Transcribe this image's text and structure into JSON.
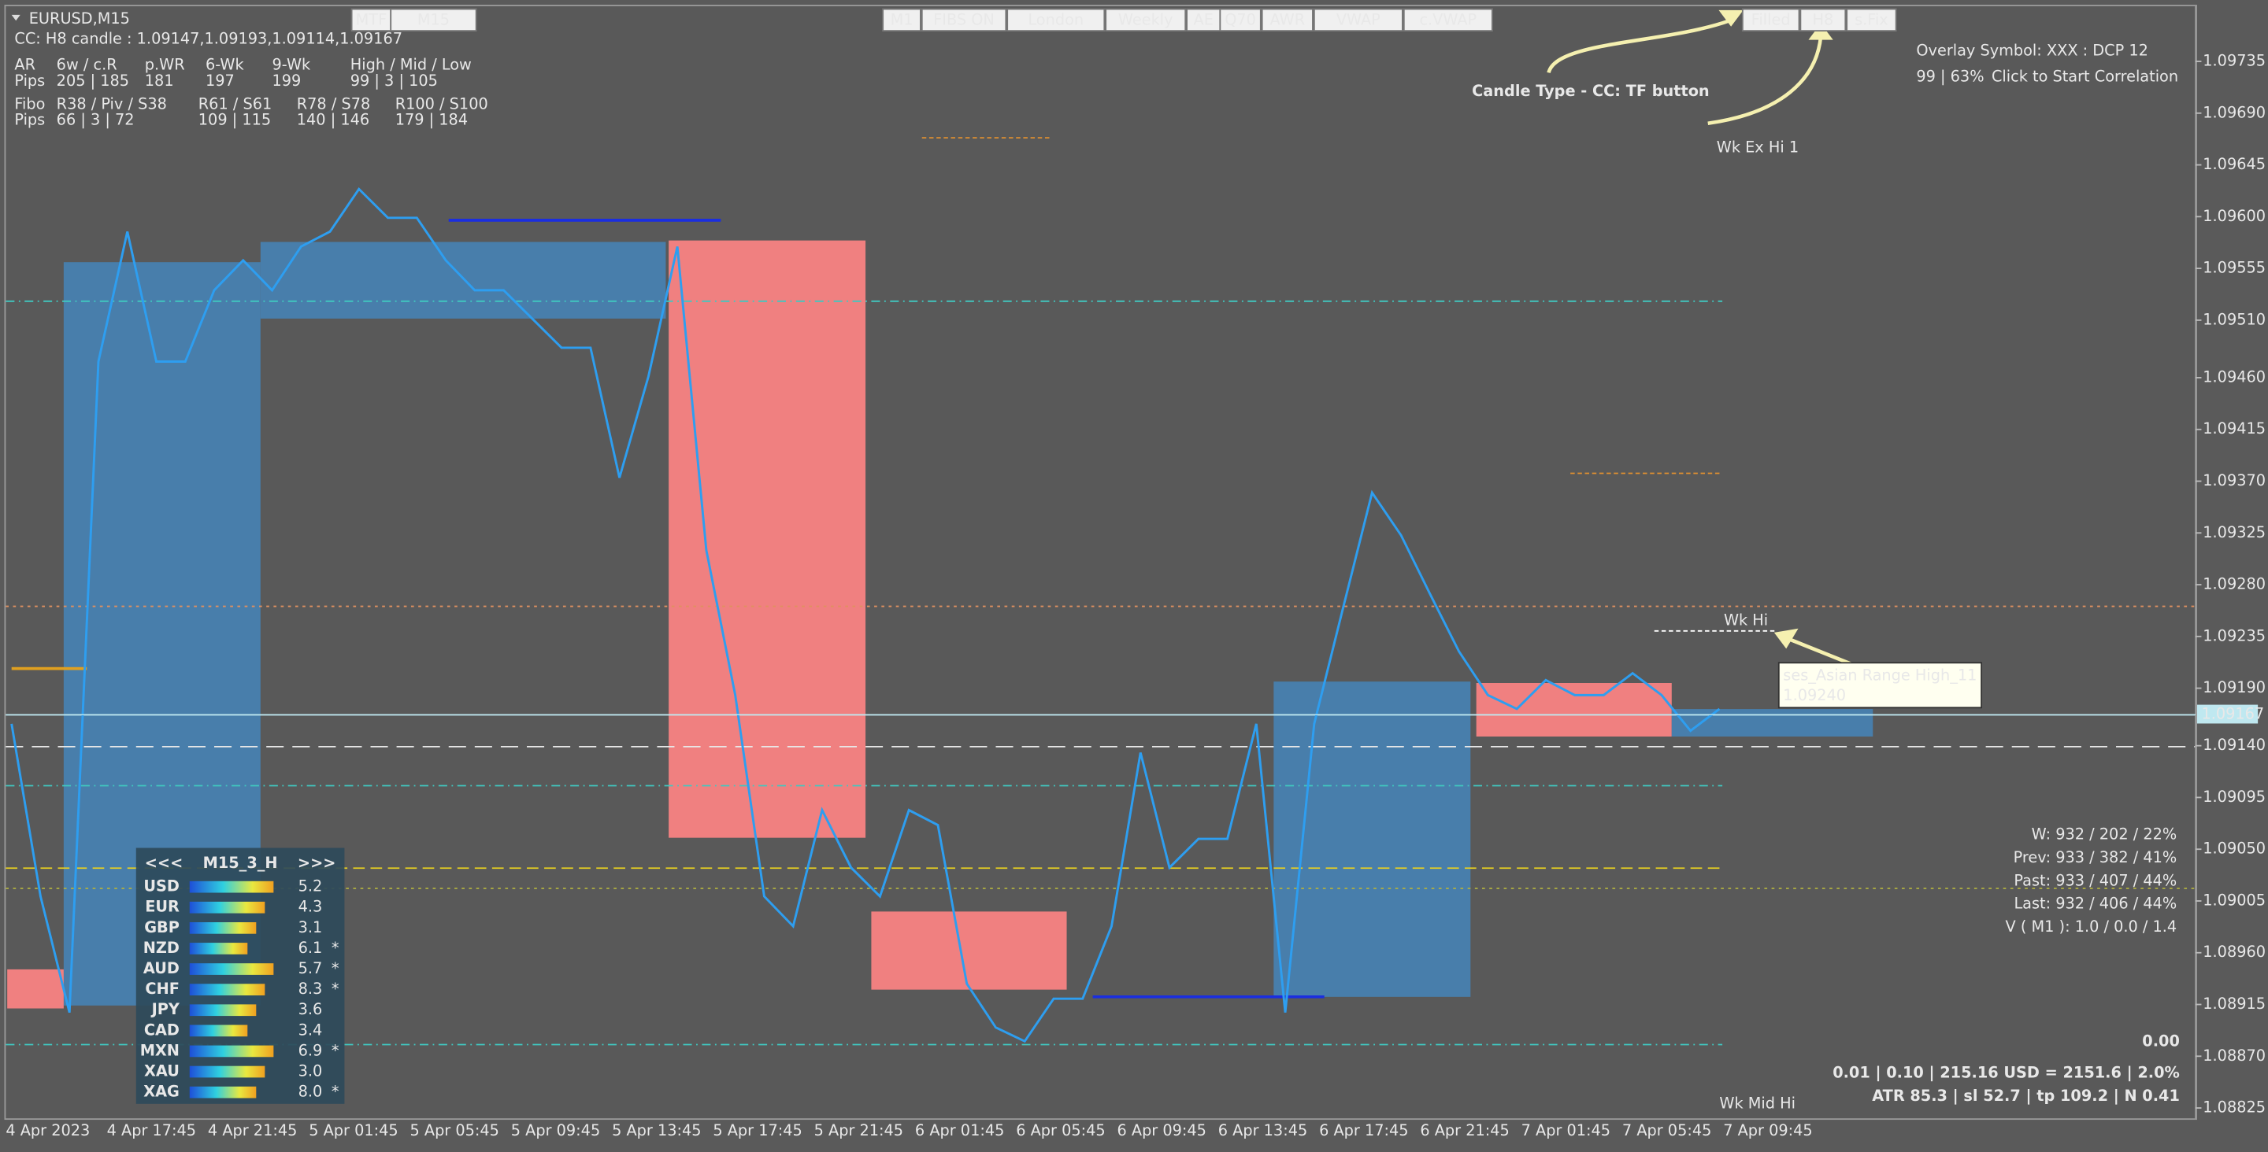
{
  "header": {
    "symbol": "EURUSD,M15",
    "candle_info": "CC: H8 candle : 1.09147,1.09193,1.09114,1.09167"
  },
  "info_table": {
    "rows": [
      [
        "AR",
        "6w / c.R",
        "p.WR",
        "6-Wk",
        "9-Wk",
        "High / Mid / Low"
      ],
      [
        "Pips",
        "205 | 185",
        "181",
        "197",
        "199",
        "99 | 3 | 105"
      ],
      [
        "Fibo",
        "R38 / Piv / S38",
        "R61 / S61",
        "R78 / S78",
        "R100 / S100"
      ],
      [
        "Pips",
        "66 | 3 | 72",
        "109 | 115",
        "140 | 146",
        "179 | 184"
      ]
    ]
  },
  "buttons": {
    "left": [
      "MTF",
      "M15"
    ],
    "center": [
      "M1",
      "FIBS ON",
      "London",
      "Weekly",
      "AE",
      "Q70",
      "AWR",
      "VWAP",
      "c.VWAP"
    ],
    "right": [
      "Filled",
      "H8",
      "s.Fix"
    ]
  },
  "annotation": "Candle Type - CC: TF button",
  "levels": {
    "wk_ex_hi": "Wk Ex Hi 1",
    "wk_hi": "Wk Hi",
    "wk_mid_hi": "Wk Mid Hi"
  },
  "tooltip": {
    "name": "ses_Asian Range High_11",
    "price": "1.09240"
  },
  "overlay": {
    "title": "Overlay Symbol: XXX : DCP 12",
    "stat": "99 | 63%",
    "action": "Click to Start Correlation"
  },
  "stats": [
    "W: 932 / 202 / 22%",
    "Prev: 933 / 382 / 41%",
    "Past: 933 / 407 / 44%",
    "Last: 932 / 406 / 44%",
    "V ( M1 ): 1.0 / 0.0 / 1.4"
  ],
  "pnl": "0.00",
  "risk": [
    "0.01  |  0.10  |  215.16 USD = 2151.6  |  2.0%",
    "ATR 85.3  | sl 52.7  |  tp 109.2  |  N 0.41"
  ],
  "currency_panel": {
    "nav": [
      "<<<",
      "M15_3_H",
      ">>>"
    ],
    "rows": [
      {
        "name": "USD",
        "value": "5.2"
      },
      {
        "name": "EUR",
        "value": "4.3"
      },
      {
        "name": "GBP",
        "value": "3.1"
      },
      {
        "name": "NZD",
        "value": "6.1",
        "mark": "*"
      },
      {
        "name": "AUD",
        "value": "5.7",
        "mark": "*"
      },
      {
        "name": "CHF",
        "value": "8.3",
        "mark": "*"
      },
      {
        "name": "JPY",
        "value": "3.6"
      },
      {
        "name": "CAD",
        "value": "3.4"
      },
      {
        "name": "MXN",
        "value": "6.9",
        "mark": "*"
      },
      {
        "name": "XAU",
        "value": "3.0"
      },
      {
        "name": "XAG",
        "value": "8.0",
        "mark": "*"
      }
    ]
  },
  "chart": {
    "type": "line",
    "color": "#2e9ef0",
    "ylim": [
      1.08816,
      1.09783
    ],
    "yticks": [
      1.09735,
      {
        "value": 1.0969,
        "label": "1.09690"
      },
      1.09645,
      {
        "value": 1.096,
        "label": "1.09600"
      },
      1.09555,
      {
        "value": 1.0951,
        "label": "1.09510"
      },
      {
        "value": 1.0946,
        "label": "1.09460"
      },
      1.09415,
      {
        "value": 1.0937,
        "label": "1.09370"
      },
      1.09325,
      {
        "value": 1.0928,
        "label": "1.09280"
      },
      1.09235,
      {
        "value": 1.0919,
        "label": "1.09190"
      },
      {
        "value": 1.0914,
        "label": "1.09140"
      },
      1.09095,
      {
        "value": 1.0905,
        "label": "1.09050"
      },
      1.09005,
      {
        "value": 1.0896,
        "label": "1.08960"
      },
      1.08915,
      {
        "value": 1.0887,
        "label": "1.08870"
      },
      1.08825
    ],
    "x_labels": [
      "4 Apr 2023",
      "4 Apr 17:45",
      "4 Apr 21:45",
      "5 Apr 01:45",
      "5 Apr 05:45",
      "5 Apr 09:45",
      "5 Apr 13:45",
      "5 Apr 17:45",
      "5 Apr 21:45",
      "6 Apr 01:45",
      "6 Apr 05:45",
      "6 Apr 09:45",
      "6 Apr 13:45",
      "6 Apr 17:45",
      "6 Apr 21:45",
      "7 Apr 01:45",
      "7 Apr 05:45",
      "7 Apr 09:45"
    ],
    "close": [
      1.09159,
      1.09009,
      1.08908,
      1.09474,
      1.09587,
      1.09474,
      1.09474,
      1.09536,
      1.09562,
      1.09536,
      1.09574,
      1.09587,
      1.09624,
      1.09599,
      1.09599,
      1.09562,
      1.09536,
      1.09536,
      1.09511,
      1.09486,
      1.09486,
      1.09373,
      1.09461,
      1.09574,
      1.0931,
      1.09184,
      1.09009,
      1.08983,
      1.09084,
      1.09034,
      1.09009,
      1.09084,
      1.09071,
      1.08933,
      1.08895,
      1.08883,
      1.0892,
      1.0892,
      1.08983,
      1.09134,
      1.09034,
      1.09059,
      1.09059,
      1.09159,
      1.08908,
      1.09159,
      1.0926,
      1.0936,
      1.09323,
      1.09272,
      1.09222,
      1.09184,
      1.09172,
      1.09197,
      1.09184,
      1.09184,
      1.09203,
      1.09184,
      1.09153,
      1.09172
    ],
    "current_price": 1.09167
  }
}
